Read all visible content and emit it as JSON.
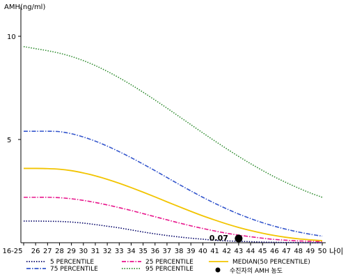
{
  "chart_data": {
    "type": "line",
    "ylabel": "AMH(ng/ml)",
    "xlabel": "나이",
    "ylim": [
      0,
      11
    ],
    "y_ticks": [
      10,
      5
    ],
    "x": [
      "16-25",
      "26",
      "27",
      "28",
      "29",
      "30",
      "31",
      "32",
      "33",
      "34",
      "35",
      "36",
      "37",
      "38",
      "39",
      "40",
      "41",
      "42",
      "43",
      "44",
      "45",
      "46",
      "47",
      "48",
      "49",
      "50"
    ],
    "grid": false,
    "legend_placement": "bottom",
    "series": [
      {
        "name": "5 PERCENTILE",
        "color": "#000066",
        "dash": "dotted",
        "values": [
          1.05,
          1.05,
          1.04,
          1.03,
          1.0,
          0.95,
          0.88,
          0.8,
          0.72,
          0.62,
          0.52,
          0.43,
          0.35,
          0.28,
          0.22,
          0.17,
          0.12,
          0.09,
          0.07,
          0.05,
          0.03,
          0.02,
          0.01,
          0.01,
          0.0,
          0.0
        ]
      },
      {
        "name": "25 PERCENTILE",
        "color": "#e8168c",
        "dash": "dashdot",
        "values": [
          2.2,
          2.2,
          2.2,
          2.18,
          2.13,
          2.05,
          1.95,
          1.83,
          1.7,
          1.56,
          1.41,
          1.26,
          1.11,
          0.96,
          0.82,
          0.69,
          0.57,
          0.46,
          0.37,
          0.29,
          0.22,
          0.16,
          0.12,
          0.09,
          0.07,
          0.05
        ]
      },
      {
        "name": "75 PERCENTILE",
        "color": "#3355cc",
        "dash": "dashdot",
        "values": [
          5.4,
          5.4,
          5.4,
          5.38,
          5.28,
          5.12,
          4.92,
          4.68,
          4.41,
          4.12,
          3.81,
          3.49,
          3.16,
          2.83,
          2.51,
          2.2,
          1.91,
          1.64,
          1.39,
          1.17,
          0.97,
          0.8,
          0.65,
          0.52,
          0.41,
          0.32
        ]
      },
      {
        "name": "MEDIAN(50 PERCENTILE)",
        "color": "#f2c400",
        "dash": "solid",
        "values": [
          3.6,
          3.6,
          3.59,
          3.56,
          3.49,
          3.38,
          3.24,
          3.07,
          2.88,
          2.67,
          2.45,
          2.22,
          1.98,
          1.75,
          1.52,
          1.3,
          1.1,
          0.91,
          0.74,
          0.59,
          0.46,
          0.35,
          0.26,
          0.19,
          0.14,
          0.1
        ]
      },
      {
        "name": "95 PERCENTILE",
        "color": "#2e8b2e",
        "dash": "dotted",
        "values": [
          9.5,
          9.4,
          9.3,
          9.18,
          9.02,
          8.82,
          8.58,
          8.3,
          7.99,
          7.65,
          7.29,
          6.91,
          6.52,
          6.12,
          5.72,
          5.32,
          4.93,
          4.55,
          4.18,
          3.83,
          3.5,
          3.19,
          2.91,
          2.65,
          2.41,
          2.2
        ]
      }
    ],
    "patient_marker": {
      "label": "수진자의 AMH 농도",
      "x": "43",
      "y": 0.07,
      "value_label": "0.07"
    }
  }
}
